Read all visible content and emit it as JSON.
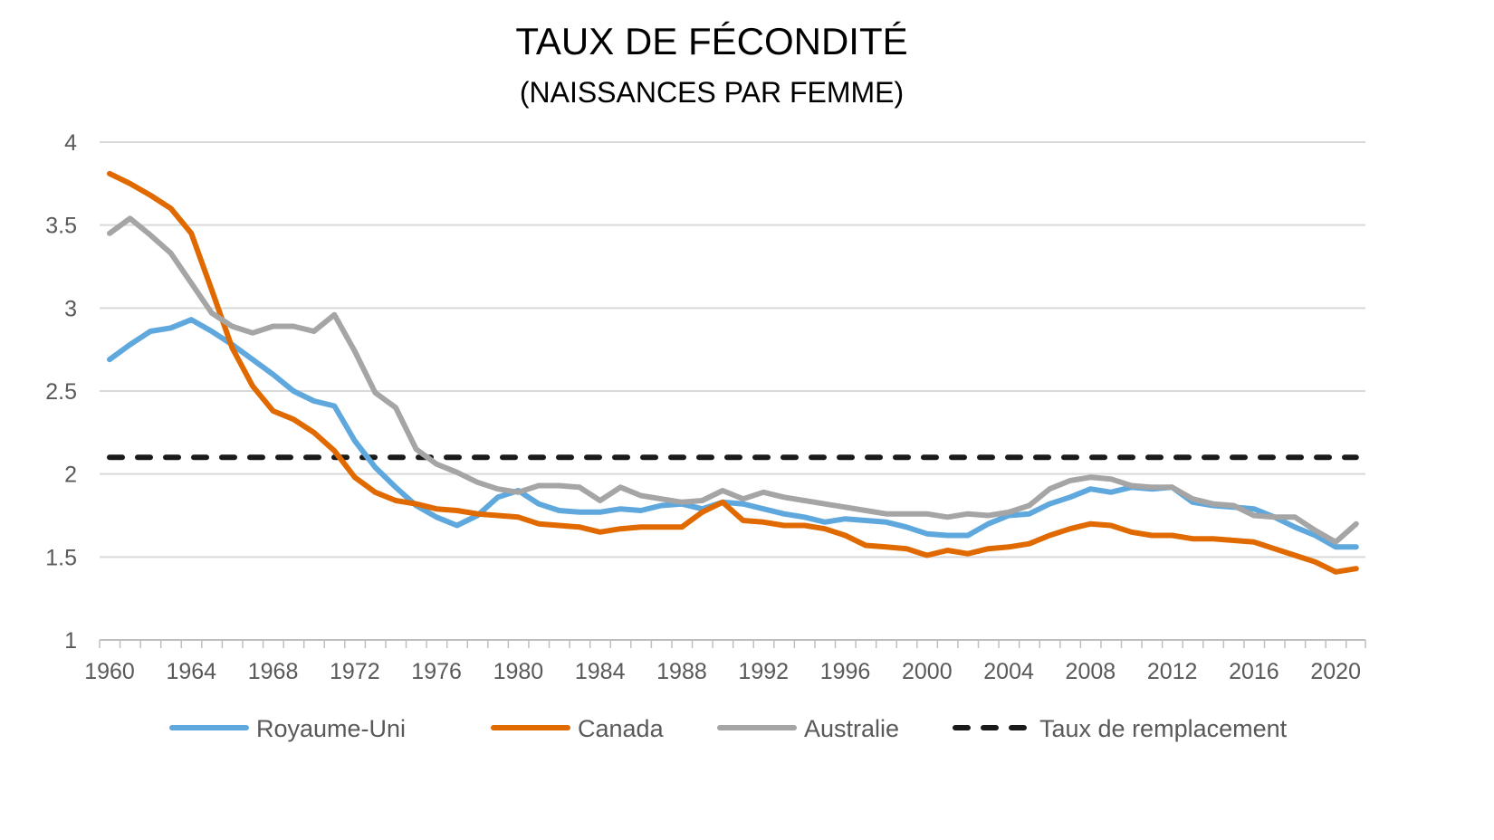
{
  "chart_data": {
    "type": "line",
    "title": "TAUX DE FÉCONDITÉ",
    "subtitle": "(NAISSANCES PAR FEMME)",
    "xlabel": "",
    "ylabel": "",
    "ylim": [
      1,
      4
    ],
    "yticks": [
      "1",
      "1.5",
      "2",
      "2.5",
      "3",
      "3.5",
      "4"
    ],
    "xlim": [
      1960,
      2021
    ],
    "xticks": [
      "1960",
      "1964",
      "1968",
      "1972",
      "1976",
      "1980",
      "1984",
      "1988",
      "1992",
      "1996",
      "2000",
      "2004",
      "2008",
      "2012",
      "2016",
      "2020"
    ],
    "grid": true,
    "legend_position": "bottom",
    "x": [
      1960,
      1961,
      1962,
      1963,
      1964,
      1965,
      1966,
      1967,
      1968,
      1969,
      1970,
      1971,
      1972,
      1973,
      1974,
      1975,
      1976,
      1977,
      1978,
      1979,
      1980,
      1981,
      1982,
      1983,
      1984,
      1985,
      1986,
      1987,
      1988,
      1989,
      1990,
      1991,
      1992,
      1993,
      1994,
      1995,
      1996,
      1997,
      1998,
      1999,
      2000,
      2001,
      2002,
      2003,
      2004,
      2005,
      2006,
      2007,
      2008,
      2009,
      2010,
      2011,
      2012,
      2013,
      2014,
      2015,
      2016,
      2017,
      2018,
      2019,
      2020,
      2021
    ],
    "series": [
      {
        "name": "Royaume-Uni",
        "color": "#5FA8DD",
        "dash": false,
        "values": [
          2.69,
          2.78,
          2.86,
          2.88,
          2.93,
          2.86,
          2.78,
          2.69,
          2.6,
          2.5,
          2.44,
          2.41,
          2.2,
          2.04,
          1.92,
          1.81,
          1.74,
          1.69,
          1.75,
          1.86,
          1.9,
          1.82,
          1.78,
          1.77,
          1.77,
          1.79,
          1.78,
          1.81,
          1.82,
          1.79,
          1.83,
          1.82,
          1.79,
          1.76,
          1.74,
          1.71,
          1.73,
          1.72,
          1.71,
          1.68,
          1.64,
          1.63,
          1.63,
          1.7,
          1.75,
          1.76,
          1.82,
          1.86,
          1.91,
          1.89,
          1.92,
          1.91,
          1.92,
          1.83,
          1.81,
          1.8,
          1.79,
          1.74,
          1.68,
          1.63,
          1.56,
          1.56
        ]
      },
      {
        "name": "Canada",
        "color": "#E06A00",
        "dash": false,
        "values": [
          3.81,
          3.75,
          3.68,
          3.6,
          3.45,
          3.11,
          2.76,
          2.53,
          2.38,
          2.33,
          2.25,
          2.14,
          1.98,
          1.89,
          1.84,
          1.82,
          1.79,
          1.78,
          1.76,
          1.75,
          1.74,
          1.7,
          1.69,
          1.68,
          1.65,
          1.67,
          1.68,
          1.68,
          1.68,
          1.77,
          1.83,
          1.72,
          1.71,
          1.69,
          1.69,
          1.67,
          1.63,
          1.57,
          1.56,
          1.55,
          1.51,
          1.54,
          1.52,
          1.55,
          1.56,
          1.58,
          1.63,
          1.67,
          1.7,
          1.69,
          1.65,
          1.63,
          1.63,
          1.61,
          1.61,
          1.6,
          1.59,
          1.55,
          1.51,
          1.47,
          1.41,
          1.43
        ]
      },
      {
        "name": "Australie",
        "color": "#A5A5A5",
        "dash": false,
        "values": [
          3.45,
          3.54,
          3.44,
          3.33,
          3.15,
          2.97,
          2.89,
          2.85,
          2.89,
          2.89,
          2.86,
          2.96,
          2.74,
          2.49,
          2.4,
          2.15,
          2.06,
          2.01,
          1.95,
          1.91,
          1.89,
          1.93,
          1.93,
          1.92,
          1.84,
          1.92,
          1.87,
          1.85,
          1.83,
          1.84,
          1.9,
          1.85,
          1.89,
          1.86,
          1.84,
          1.82,
          1.8,
          1.78,
          1.76,
          1.76,
          1.76,
          1.74,
          1.76,
          1.75,
          1.77,
          1.81,
          1.91,
          1.96,
          1.98,
          1.97,
          1.93,
          1.92,
          1.92,
          1.85,
          1.82,
          1.81,
          1.75,
          1.74,
          1.74,
          1.66,
          1.59,
          1.7
        ]
      },
      {
        "name": "Taux de remplacement",
        "color": "#1A1A1A",
        "dash": true,
        "values": [
          2.1,
          2.1,
          2.1,
          2.1,
          2.1,
          2.1,
          2.1,
          2.1,
          2.1,
          2.1,
          2.1,
          2.1,
          2.1,
          2.1,
          2.1,
          2.1,
          2.1,
          2.1,
          2.1,
          2.1,
          2.1,
          2.1,
          2.1,
          2.1,
          2.1,
          2.1,
          2.1,
          2.1,
          2.1,
          2.1,
          2.1,
          2.1,
          2.1,
          2.1,
          2.1,
          2.1,
          2.1,
          2.1,
          2.1,
          2.1,
          2.1,
          2.1,
          2.1,
          2.1,
          2.1,
          2.1,
          2.1,
          2.1,
          2.1,
          2.1,
          2.1,
          2.1,
          2.1,
          2.1,
          2.1,
          2.1,
          2.1,
          2.1,
          2.1,
          2.1,
          2.1,
          2.1
        ]
      }
    ]
  }
}
